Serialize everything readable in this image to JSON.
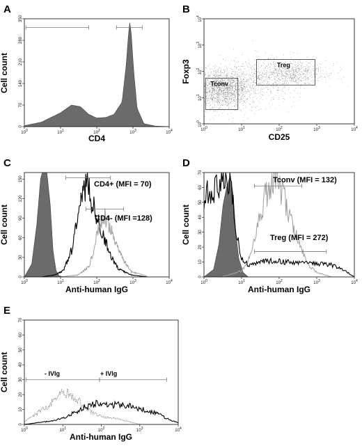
{
  "chart_data": [
    {
      "panel_label": "A",
      "type": "area",
      "xlabel": "CD4",
      "ylabel": "Cell count",
      "x_scale": "log",
      "xlim": [
        1,
        10000
      ],
      "ylim": [
        0,
        350
      ],
      "x_ticks": [
        "10^0",
        "10^1",
        "10^2",
        "10^3",
        "10^4"
      ],
      "y_ticks": [
        "0",
        "70",
        "140",
        "210",
        "280",
        "350"
      ],
      "series": [
        {
          "fill": "#6b6b6b",
          "points": [
            [
              1,
              3
            ],
            [
              3,
              15
            ],
            [
              10,
              45
            ],
            [
              20,
              70
            ],
            [
              35,
              65
            ],
            [
              60,
              40
            ],
            [
              100,
              28
            ],
            [
              180,
              30
            ],
            [
              300,
              40
            ],
            [
              500,
              80
            ],
            [
              650,
              200
            ],
            [
              750,
              300
            ],
            [
              820,
              340
            ],
            [
              900,
              300
            ],
            [
              1050,
              180
            ],
            [
              1300,
              60
            ],
            [
              2000,
              10
            ],
            [
              4000,
              2
            ],
            [
              10000,
              0
            ]
          ]
        }
      ],
      "gates": [
        {
          "x": [
            1.1,
            60
          ],
          "y": 322
        },
        {
          "x": [
            350,
            1800
          ],
          "y": 322
        }
      ]
    },
    {
      "panel_label": "B",
      "type": "scatter",
      "xlabel": "CD25",
      "ylabel": "Foxp3",
      "x_scale": "log",
      "y_scale": "log",
      "xlim": [
        1,
        10000
      ],
      "ylim": [
        1,
        10000
      ],
      "x_ticks": [
        "10^0",
        "10^1",
        "10^2",
        "10^3",
        "10^4"
      ],
      "y_ticks": [
        "10^0",
        "10^1",
        "10^2",
        "10^3",
        "10^4"
      ],
      "clusters": [
        {
          "center": [
            3,
            22
          ],
          "spread": [
            0.38,
            0.38
          ],
          "n": 1500
        },
        {
          "center": [
            200,
            90
          ],
          "spread": [
            0.5,
            0.25
          ],
          "n": 700
        },
        {
          "center": [
            25,
            40
          ],
          "spread": [
            0.6,
            0.45
          ],
          "n": 500
        }
      ],
      "gates": [
        {
          "label": "Tconv",
          "x": [
            1.1,
            8
          ],
          "y": [
            3.5,
            55
          ]
        },
        {
          "label": "Treg",
          "x": [
            25,
            900
          ],
          "y": [
            30,
            280
          ]
        }
      ]
    },
    {
      "panel_label": "C",
      "type": "area",
      "xlabel": "Anti-human IgG",
      "ylabel": "Cell count",
      "x_scale": "log",
      "xlim": [
        1,
        10000
      ],
      "ylim": [
        0,
        160
      ],
      "x_ticks": [
        "10^0",
        "10^1",
        "10^2",
        "10^3",
        "10^4"
      ],
      "y_ticks": [
        "0",
        "30",
        "60",
        "90",
        "120",
        "150"
      ],
      "series": [
        {
          "style": "filled",
          "fill": "#6b6b6b",
          "points": [
            [
              1,
              0
            ],
            [
              1.6,
              20
            ],
            [
              2.2,
              80
            ],
            [
              2.8,
              150
            ],
            [
              3.3,
              165
            ],
            [
              4.2,
              160
            ],
            [
              5.2,
              110
            ],
            [
              6.2,
              40
            ],
            [
              7.5,
              10
            ],
            [
              9,
              2
            ],
            [
              12,
              0
            ]
          ]
        },
        {
          "name": "CD4+ (MFI = 70)",
          "style": "black",
          "points": [
            [
              3,
              0
            ],
            [
              7,
              3
            ],
            [
              12,
              10
            ],
            [
              20,
              40
            ],
            [
              32,
              95
            ],
            [
              45,
              135
            ],
            [
              55,
              142
            ],
            [
              70,
              120
            ],
            [
              110,
              85
            ],
            [
              160,
              60
            ],
            [
              230,
              35
            ],
            [
              400,
              12
            ],
            [
              900,
              3
            ],
            [
              2500,
              0
            ]
          ]
        },
        {
          "name": "CD4- (MFI =128)",
          "style": "grey",
          "points": [
            [
              10,
              0
            ],
            [
              30,
              3
            ],
            [
              60,
              15
            ],
            [
              90,
              50
            ],
            [
              120,
              80
            ],
            [
              170,
              90
            ],
            [
              250,
              70
            ],
            [
              350,
              50
            ],
            [
              500,
              28
            ],
            [
              900,
              8
            ],
            [
              2500,
              1
            ]
          ]
        }
      ],
      "annotations": [
        "CD4+ (MFI = 70)",
        "CD4- (MFI =128)"
      ],
      "gates": [
        {
          "x": [
            14,
            240
          ],
          "y": 152
        },
        {
          "x": [
            50,
            550
          ],
          "y": 104
        }
      ]
    },
    {
      "panel_label": "D",
      "type": "area",
      "xlabel": "Anti-human IgG",
      "ylabel": "Cell count",
      "x_scale": "log",
      "xlim": [
        1,
        10000
      ],
      "ylim": [
        0,
        70
      ],
      "x_ticks": [
        "10^0",
        "10^1",
        "10^2",
        "10^3",
        "10^4"
      ],
      "y_ticks": [
        "0",
        "10",
        "20",
        "30",
        "40",
        "50",
        "60",
        "70"
      ],
      "series": [
        {
          "style": "filled",
          "fill": "#6b6b6b",
          "points": [
            [
              1,
              0
            ],
            [
              1.8,
              5
            ],
            [
              2.5,
              22
            ],
            [
              3.2,
              48
            ],
            [
              4,
              60
            ],
            [
              5,
              68
            ],
            [
              6,
              55
            ],
            [
              7,
              30
            ],
            [
              8.5,
              12
            ],
            [
              11,
              3
            ],
            [
              15,
              0
            ]
          ]
        },
        {
          "name": "Tconv (MFI = 132)",
          "style": "grey",
          "points": [
            [
              3,
              0
            ],
            [
              10,
              4
            ],
            [
              18,
              15
            ],
            [
              28,
              35
            ],
            [
              40,
              52
            ],
            [
              55,
              60
            ],
            [
              75,
              65
            ],
            [
              100,
              60
            ],
            [
              140,
              52
            ],
            [
              200,
              40
            ],
            [
              280,
              28
            ],
            [
              400,
              18
            ],
            [
              600,
              8
            ],
            [
              1000,
              3
            ],
            [
              2500,
              0
            ]
          ]
        },
        {
          "name": "Treg (MFI = 272)",
          "style": "black",
          "points": [
            [
              1,
              55
            ],
            [
              2,
              60
            ],
            [
              3,
              66
            ],
            [
              4,
              68
            ],
            [
              5,
              62
            ],
            [
              6,
              48
            ],
            [
              7.5,
              28
            ],
            [
              10,
              12
            ],
            [
              15,
              8
            ],
            [
              30,
              10
            ],
            [
              60,
              11
            ],
            [
              150,
              10
            ],
            [
              400,
              9
            ],
            [
              1000,
              9
            ],
            [
              2500,
              8
            ],
            [
              5000,
              5
            ],
            [
              10000,
              0
            ]
          ]
        }
      ],
      "annotations": [
        "Tconv (MFI = 132)",
        "Treg (MFI = 272)"
      ],
      "gates": [
        {
          "x": [
            22,
            400
          ],
          "y": 61
        },
        {
          "x": [
            22,
            1800
          ],
          "y": 17
        }
      ]
    },
    {
      "panel_label": "E",
      "type": "line",
      "xlabel": "Anti-human IgG",
      "ylabel": "Cell count",
      "x_scale": "log",
      "xlim": [
        1,
        10000
      ],
      "ylim": [
        0,
        70
      ],
      "x_ticks": [
        "10^0",
        "10^1",
        "10^2",
        "10^3",
        "10^4"
      ],
      "y_ticks": [
        "0",
        "10",
        "20",
        "30",
        "40",
        "50",
        "60",
        "70"
      ],
      "series": [
        {
          "name": "- IVIg",
          "style": "grey-dotted",
          "points": [
            [
              1,
              2
            ],
            [
              2,
              7
            ],
            [
              4,
              12
            ],
            [
              7,
              18
            ],
            [
              11,
              21
            ],
            [
              16,
              20
            ],
            [
              25,
              16
            ],
            [
              40,
              11
            ],
            [
              70,
              7
            ],
            [
              120,
              5
            ],
            [
              250,
              4
            ],
            [
              500,
              2
            ],
            [
              1000,
              0
            ]
          ]
        },
        {
          "name": "+ IVIg",
          "style": "black",
          "points": [
            [
              1,
              0
            ],
            [
              4,
              2
            ],
            [
              10,
              4
            ],
            [
              20,
              8
            ],
            [
              40,
              12
            ],
            [
              70,
              14
            ],
            [
              150,
              13
            ],
            [
              300,
              13
            ],
            [
              600,
              12
            ],
            [
              1200,
              10
            ],
            [
              2500,
              8
            ],
            [
              5000,
              4
            ],
            [
              10000,
              1
            ]
          ]
        }
      ],
      "annotations": [
        "- IVIg",
        "+ IVIg"
      ],
      "gates": [
        {
          "x": [
            1.1,
            90
          ],
          "y": 30
        },
        {
          "x": [
            90,
            5000
          ],
          "y": 30
        }
      ]
    }
  ]
}
